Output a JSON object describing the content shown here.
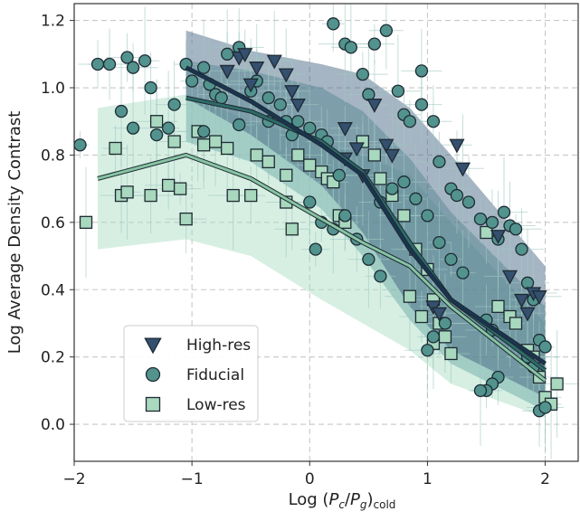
{
  "chart_data": {
    "type": "scatter",
    "title": "",
    "xlabel": "Log (P_c/P_g)_cold",
    "xlabel_parts": {
      "prefix": "Log (",
      "p1": "P",
      "s1": "c",
      "slash": "/",
      "p2": "P",
      "s2": "g",
      "close": ")",
      "sub": "cold"
    },
    "ylabel": "Log Average Density Contrast",
    "xlim": [
      -2.0,
      2.28
    ],
    "ylim": [
      -0.11,
      1.25
    ],
    "xticks": [
      -2,
      -1,
      0,
      1,
      2
    ],
    "xtick_labels": [
      "−2",
      "−1",
      "0",
      "1",
      "2"
    ],
    "yticks": [
      0.0,
      0.2,
      0.4,
      0.6,
      0.8,
      1.0,
      1.2
    ],
    "ytick_labels": [
      "0.0",
      "0.2",
      "0.4",
      "0.6",
      "0.8",
      "1.0",
      "1.2"
    ],
    "grid": true,
    "legend_position": "lower-left",
    "series": [
      {
        "name": "High-res",
        "marker": "triangle-down",
        "color": "#34506e",
        "line_color": "#1a3550",
        "band_color": "#3a5a7a",
        "trend_x": [
          -1.05,
          -0.5,
          0.1,
          0.45,
          0.85,
          1.2,
          2.0
        ],
        "trend_y": [
          1.06,
          0.96,
          0.83,
          0.74,
          0.52,
          0.37,
          0.18
        ],
        "band_upper": [
          1.17,
          1.11,
          1.07,
          1.04,
          0.94,
          0.8,
          0.47
        ],
        "band_lower": [
          0.97,
          0.86,
          0.71,
          0.57,
          0.35,
          0.22,
          0.08
        ],
        "points": [
          [
            -0.6,
            1.09
          ],
          [
            -0.55,
            1.1
          ],
          [
            -0.45,
            1.06
          ],
          [
            -0.3,
            1.08
          ],
          [
            -0.2,
            1.04
          ],
          [
            -0.15,
            0.99
          ],
          [
            -0.7,
            1.05
          ],
          [
            -0.5,
            1.01
          ],
          [
            -0.1,
            0.95
          ],
          [
            0.3,
            0.88
          ],
          [
            0.4,
            0.82
          ],
          [
            0.45,
            0.74
          ],
          [
            0.55,
            0.95
          ],
          [
            0.65,
            0.83
          ],
          [
            0.7,
            0.8
          ],
          [
            0.3,
            0.79
          ],
          [
            1.25,
            0.83
          ],
          [
            1.3,
            0.76
          ],
          [
            1.6,
            0.56
          ],
          [
            1.7,
            0.44
          ],
          [
            1.8,
            0.37
          ],
          [
            1.85,
            0.33
          ],
          [
            1.9,
            0.39
          ],
          [
            1.95,
            0.38
          ],
          [
            1.05,
            0.35
          ],
          [
            1.1,
            0.33
          ]
        ]
      },
      {
        "name": "Fiducial",
        "marker": "circle",
        "color": "#52938e",
        "line_color": "#2d6b68",
        "band_color": "#5fa3a0",
        "trend_x": [
          -1.05,
          -0.5,
          0.1,
          0.45,
          0.85,
          1.2,
          2.0
        ],
        "trend_y": [
          0.97,
          0.93,
          0.84,
          0.75,
          0.54,
          0.37,
          0.16
        ],
        "band_upper": [
          1.08,
          1.05,
          1.0,
          0.93,
          0.79,
          0.63,
          0.35
        ],
        "band_lower": [
          0.84,
          0.78,
          0.64,
          0.5,
          0.31,
          0.18,
          0.04
        ],
        "points": [
          [
            -1.95,
            0.83
          ],
          [
            -1.8,
            1.07
          ],
          [
            -1.7,
            1.07
          ],
          [
            -1.55,
            1.09
          ],
          [
            -1.5,
            1.06
          ],
          [
            -1.4,
            1.08
          ],
          [
            -1.35,
            1.0
          ],
          [
            -1.6,
            0.93
          ],
          [
            -1.5,
            0.88
          ],
          [
            -1.3,
            0.86
          ],
          [
            -1.2,
            0.88
          ],
          [
            -1.15,
            0.95
          ],
          [
            -1.05,
            1.07
          ],
          [
            -1.0,
            1.02
          ],
          [
            -0.9,
            1.06
          ],
          [
            -0.85,
            1.01
          ],
          [
            -0.8,
            0.98
          ],
          [
            -0.75,
            0.97
          ],
          [
            -0.7,
            1.1
          ],
          [
            -0.6,
            1.12
          ],
          [
            -0.5,
            0.99
          ],
          [
            -0.45,
            1.02
          ],
          [
            -0.35,
            0.97
          ],
          [
            -0.25,
            0.95
          ],
          [
            -0.2,
            0.9
          ],
          [
            -0.15,
            0.86
          ],
          [
            -0.1,
            0.9
          ],
          [
            0.0,
            0.88
          ],
          [
            0.1,
            0.86
          ],
          [
            0.15,
            0.84
          ],
          [
            0.2,
            1.19
          ],
          [
            0.3,
            1.13
          ],
          [
            0.35,
            1.12
          ],
          [
            0.45,
            1.04
          ],
          [
            0.55,
            1.13
          ],
          [
            0.65,
            1.17
          ],
          [
            0.75,
            0.99
          ],
          [
            0.8,
            0.92
          ],
          [
            0.85,
            0.9
          ],
          [
            0.95,
            0.95
          ],
          [
            1.05,
            0.9
          ],
          [
            1.1,
            0.78
          ],
          [
            1.2,
            0.7
          ],
          [
            1.25,
            0.68
          ],
          [
            1.35,
            0.66
          ],
          [
            1.45,
            0.61
          ],
          [
            1.55,
            0.6
          ],
          [
            1.6,
            0.55
          ],
          [
            1.65,
            0.63
          ],
          [
            1.7,
            0.59
          ],
          [
            1.75,
            0.58
          ],
          [
            1.8,
            0.52
          ],
          [
            1.85,
            0.42
          ],
          [
            1.9,
            0.37
          ],
          [
            1.95,
            0.25
          ],
          [
            2.0,
            0.23
          ],
          [
            0.0,
            0.66
          ],
          [
            0.1,
            0.6
          ],
          [
            0.2,
            0.58
          ],
          [
            0.3,
            0.62
          ],
          [
            0.4,
            0.55
          ],
          [
            0.5,
            0.49
          ],
          [
            0.6,
            0.44
          ],
          [
            0.7,
            0.7
          ],
          [
            0.8,
            0.72
          ],
          [
            0.9,
            0.67
          ],
          [
            1.0,
            0.62
          ],
          [
            1.1,
            0.54
          ],
          [
            1.2,
            0.49
          ],
          [
            1.3,
            0.45
          ],
          [
            1.5,
            0.31
          ],
          [
            1.55,
            0.28
          ],
          [
            1.6,
            0.14
          ],
          [
            1.55,
            0.12
          ],
          [
            1.5,
            0.1
          ],
          [
            1.45,
            0.1
          ],
          [
            1.0,
            0.22
          ],
          [
            1.05,
            0.26
          ],
          [
            1.15,
            0.3
          ],
          [
            1.85,
            0.2
          ],
          [
            1.9,
            0.17
          ],
          [
            1.95,
            0.04
          ],
          [
            2.0,
            0.05
          ],
          [
            0.95,
            1.05
          ],
          [
            0.5,
            0.98
          ],
          [
            -0.35,
            0.9
          ],
          [
            -0.6,
            0.89
          ],
          [
            -0.9,
            0.87
          ],
          [
            0.05,
            0.52
          ],
          [
            0.25,
            0.74
          ],
          [
            0.6,
            0.66
          ]
        ]
      },
      {
        "name": "Low-res",
        "marker": "square",
        "color": "#a8d8be",
        "line_color": "#87c4a3",
        "band_color": "#a6dbc0",
        "trend_x": [
          -1.8,
          -1.05,
          -0.5,
          0.1,
          0.45,
          0.85,
          1.2,
          2.0
        ],
        "trend_y": [
          0.73,
          0.8,
          0.73,
          0.61,
          0.54,
          0.47,
          0.35,
          0.13
        ],
        "band_upper": [
          0.94,
          0.98,
          0.9,
          0.84,
          0.8,
          0.74,
          0.6,
          0.3
        ],
        "band_lower": [
          0.52,
          0.55,
          0.5,
          0.37,
          0.3,
          0.22,
          0.12,
          0.02
        ],
        "points": [
          [
            -1.9,
            0.6
          ],
          [
            -1.65,
            0.82
          ],
          [
            -1.6,
            0.68
          ],
          [
            -1.55,
            0.69
          ],
          [
            -1.35,
            0.68
          ],
          [
            -1.3,
            0.9
          ],
          [
            -1.2,
            0.71
          ],
          [
            -1.15,
            0.84
          ],
          [
            -1.1,
            0.7
          ],
          [
            -1.05,
            0.61
          ],
          [
            -0.95,
            0.87
          ],
          [
            -0.9,
            0.83
          ],
          [
            -0.8,
            0.84
          ],
          [
            -0.7,
            0.82
          ],
          [
            -0.65,
            0.68
          ],
          [
            -0.5,
            0.68
          ],
          [
            -0.45,
            0.8
          ],
          [
            -0.35,
            0.78
          ],
          [
            -0.2,
            0.74
          ],
          [
            -0.1,
            0.8
          ],
          [
            0.0,
            0.77
          ],
          [
            0.1,
            0.75
          ],
          [
            0.15,
            0.73
          ],
          [
            0.2,
            0.72
          ],
          [
            0.25,
            0.62
          ],
          [
            0.3,
            0.6
          ],
          [
            -0.2,
            0.66
          ],
          [
            -0.15,
            0.58
          ],
          [
            0.45,
            0.84
          ],
          [
            0.55,
            0.8
          ],
          [
            0.6,
            0.73
          ],
          [
            0.7,
            0.68
          ],
          [
            0.8,
            0.62
          ],
          [
            0.9,
            0.52
          ],
          [
            1.0,
            0.46
          ],
          [
            1.05,
            0.37
          ],
          [
            1.1,
            0.3
          ],
          [
            1.15,
            0.26
          ],
          [
            1.2,
            0.21
          ],
          [
            1.5,
            0.57
          ],
          [
            1.6,
            0.35
          ],
          [
            1.7,
            0.32
          ],
          [
            1.75,
            0.3
          ],
          [
            1.85,
            0.22
          ],
          [
            1.9,
            0.2
          ],
          [
            1.95,
            0.14
          ],
          [
            2.0,
            0.08
          ],
          [
            2.05,
            0.06
          ],
          [
            2.1,
            0.12
          ],
          [
            0.85,
            0.38
          ],
          [
            0.95,
            0.32
          ],
          [
            1.05,
            0.24
          ]
        ]
      }
    ]
  }
}
